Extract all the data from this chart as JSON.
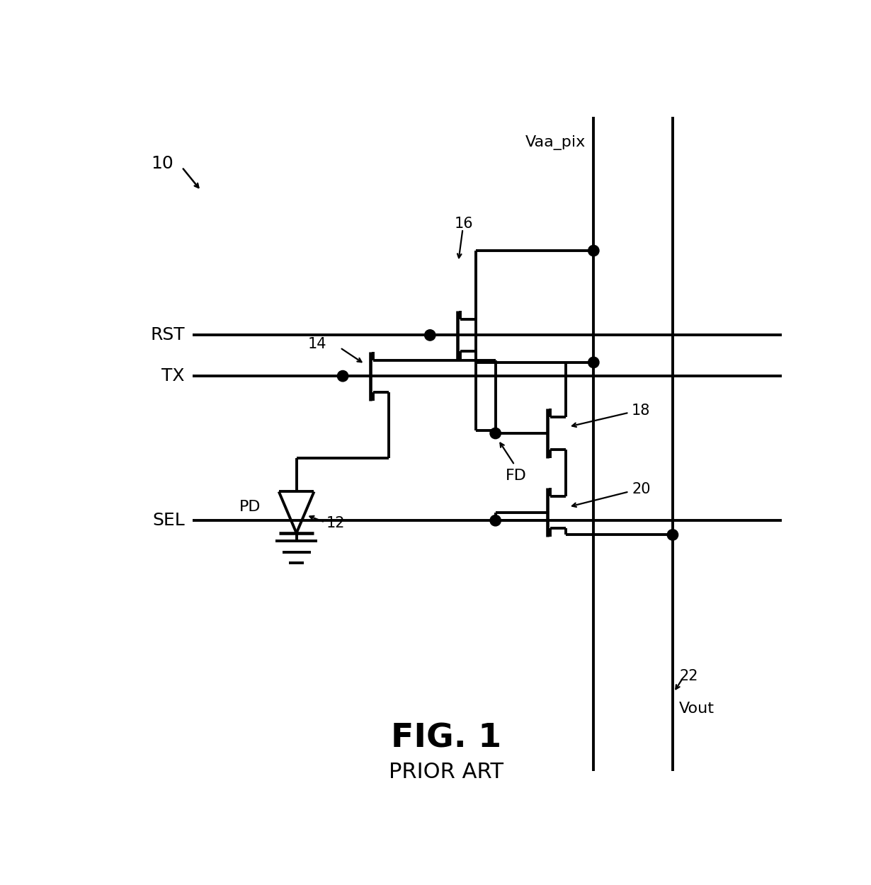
{
  "title": "FIG. 1",
  "subtitle": "PRIOR ART",
  "label_10": "10",
  "label_12": "12",
  "label_14": "14",
  "label_16": "16",
  "label_18": "18",
  "label_20": "20",
  "label_22": "22",
  "label_PD": "PD",
  "label_FD": "FD",
  "label_RST": "RST",
  "label_TX": "TX",
  "label_SEL": "SEL",
  "label_Vaa_pix": "Vaa_pix",
  "label_Vout": "Vout",
  "bg_color": "#ffffff",
  "line_color": "#000000",
  "linewidth": 2.8
}
